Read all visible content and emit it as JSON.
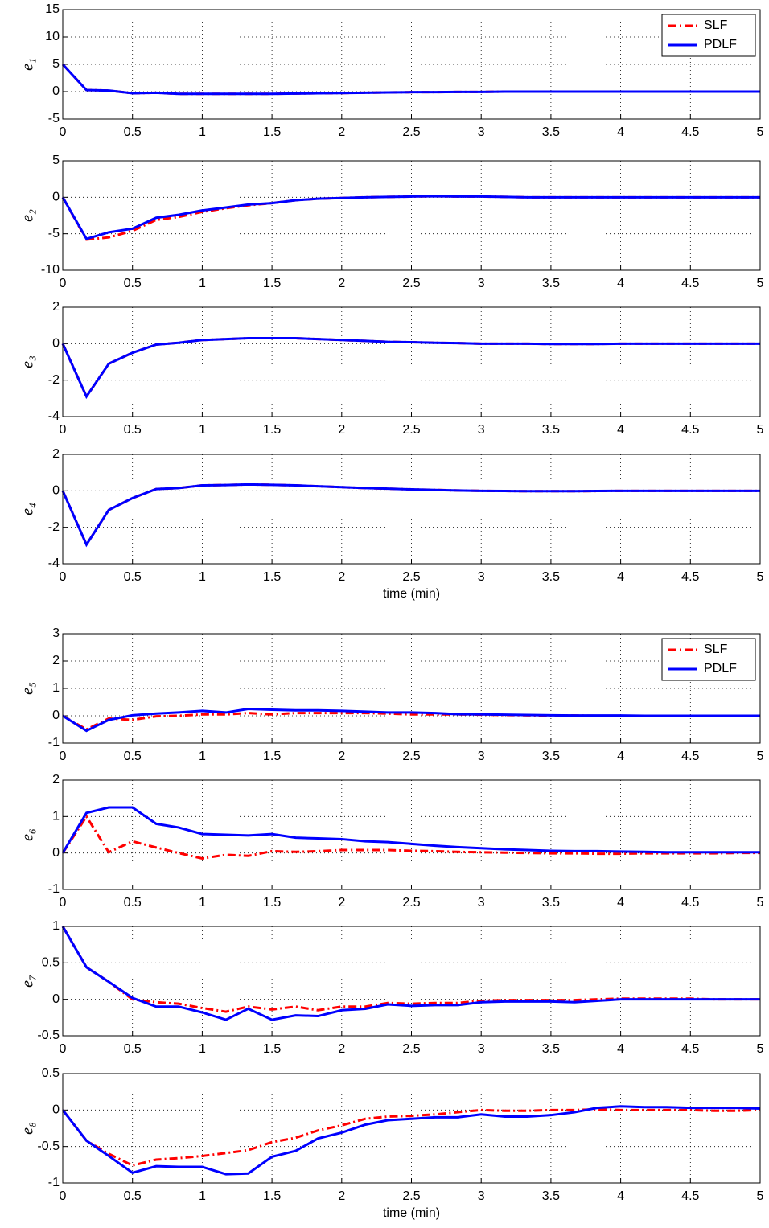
{
  "chart_data": [
    {
      "type": "line",
      "ylabel": "e₁",
      "legend": "upper right",
      "grid": true,
      "xlim": [
        0,
        5
      ],
      "xticks": [
        0,
        0.5,
        1,
        1.5,
        2,
        2.5,
        3,
        3.5,
        4,
        4.5,
        5
      ],
      "ylim": [
        -5,
        15
      ],
      "yticks": [
        -5,
        0,
        5,
        10,
        15
      ],
      "x": [
        0,
        0.17,
        0.33,
        0.5,
        0.67,
        0.83,
        1,
        1.17,
        1.33,
        1.5,
        1.67,
        1.83,
        2,
        2.17,
        2.33,
        2.5,
        2.67,
        2.83,
        3,
        3.17,
        3.33,
        3.5,
        3.67,
        3.83,
        4,
        4.17,
        4.33,
        4.5,
        4.67,
        4.83,
        5
      ],
      "series": [
        {
          "name": "SLF",
          "color": "#ff0000",
          "linestyle": "dash-dot",
          "values": [
            5,
            0.3,
            0.2,
            -0.3,
            -0.2,
            -0.4,
            -0.4,
            -0.4,
            -0.4,
            -0.4,
            -0.35,
            -0.3,
            -0.25,
            -0.2,
            -0.15,
            -0.1,
            -0.1,
            -0.05,
            -0.05,
            0,
            0,
            0,
            0,
            0,
            0,
            0,
            0,
            0,
            0,
            0,
            0
          ]
        },
        {
          "name": "PDLF",
          "color": "#0000ff",
          "linestyle": "solid",
          "values": [
            5,
            0.3,
            0.2,
            -0.3,
            -0.2,
            -0.4,
            -0.4,
            -0.4,
            -0.4,
            -0.4,
            -0.35,
            -0.3,
            -0.25,
            -0.2,
            -0.15,
            -0.1,
            -0.1,
            -0.05,
            -0.05,
            0,
            0,
            0,
            0,
            0,
            0,
            0,
            0,
            0,
            0,
            0,
            0
          ]
        }
      ]
    },
    {
      "type": "line",
      "ylabel": "e₂",
      "grid": true,
      "xlim": [
        0,
        5
      ],
      "xticks": [
        0,
        0.5,
        1,
        1.5,
        2,
        2.5,
        3,
        3.5,
        4,
        4.5,
        5
      ],
      "ylim": [
        -10,
        5
      ],
      "yticks": [
        -10,
        -5,
        0,
        5
      ],
      "x": [
        0,
        0.17,
        0.33,
        0.5,
        0.67,
        0.83,
        1,
        1.17,
        1.33,
        1.5,
        1.67,
        1.83,
        2,
        2.17,
        2.33,
        2.5,
        2.67,
        2.83,
        3,
        3.17,
        3.33,
        3.5,
        3.67,
        3.83,
        4,
        4.17,
        4.33,
        4.5,
        4.67,
        4.83,
        5
      ],
      "series": [
        {
          "name": "SLF",
          "color": "#ff0000",
          "linestyle": "dash-dot",
          "values": [
            0,
            -5.8,
            -5.5,
            -4.6,
            -3.1,
            -2.7,
            -2.0,
            -1.5,
            -1.1,
            -0.8,
            -0.4,
            -0.2,
            -0.1,
            0,
            0.05,
            0.1,
            0.15,
            0.1,
            0.1,
            0.05,
            0,
            0,
            0,
            0,
            0,
            0,
            0,
            0,
            0,
            0,
            0
          ]
        },
        {
          "name": "PDLF",
          "color": "#0000ff",
          "linestyle": "solid",
          "values": [
            0,
            -5.7,
            -4.8,
            -4.3,
            -2.8,
            -2.4,
            -1.8,
            -1.4,
            -1.0,
            -0.8,
            -0.4,
            -0.2,
            -0.1,
            0,
            0.05,
            0.1,
            0.15,
            0.1,
            0.1,
            0.05,
            0,
            0,
            0,
            0,
            0,
            0,
            0,
            0,
            0,
            0,
            0
          ]
        }
      ]
    },
    {
      "type": "line",
      "ylabel": "e₃",
      "grid": true,
      "xlim": [
        0,
        5
      ],
      "xticks": [
        0,
        0.5,
        1,
        1.5,
        2,
        2.5,
        3,
        3.5,
        4,
        4.5,
        5
      ],
      "ylim": [
        -4,
        2
      ],
      "yticks": [
        -4,
        -2,
        0,
        2
      ],
      "x": [
        0,
        0.17,
        0.33,
        0.5,
        0.67,
        0.83,
        1,
        1.17,
        1.33,
        1.5,
        1.67,
        1.83,
        2,
        2.17,
        2.33,
        2.5,
        2.67,
        2.83,
        3,
        3.17,
        3.33,
        3.5,
        3.67,
        3.83,
        4,
        4.17,
        4.33,
        4.5,
        4.67,
        4.83,
        5
      ],
      "series": [
        {
          "name": "SLF",
          "color": "#ff0000",
          "linestyle": "dash-dot",
          "values": [
            0,
            -2.9,
            -1.1,
            -0.5,
            -0.05,
            0.05,
            0.2,
            0.25,
            0.3,
            0.3,
            0.3,
            0.25,
            0.2,
            0.15,
            0.1,
            0.08,
            0.05,
            0.03,
            0,
            0,
            0,
            -0.02,
            -0.02,
            -0.02,
            0,
            0,
            0,
            0,
            0,
            0,
            0
          ]
        },
        {
          "name": "PDLF",
          "color": "#0000ff",
          "linestyle": "solid",
          "values": [
            0,
            -2.9,
            -1.1,
            -0.5,
            -0.05,
            0.05,
            0.2,
            0.25,
            0.3,
            0.3,
            0.3,
            0.25,
            0.2,
            0.15,
            0.1,
            0.08,
            0.05,
            0.03,
            0,
            0,
            0,
            -0.02,
            -0.02,
            -0.02,
            0,
            0,
            0,
            0,
            0,
            0,
            0
          ]
        }
      ]
    },
    {
      "type": "line",
      "ylabel": "e₄",
      "xlabel": "time (min)",
      "grid": true,
      "xlim": [
        0,
        5
      ],
      "xticks": [
        0,
        0.5,
        1,
        1.5,
        2,
        2.5,
        3,
        3.5,
        4,
        4.5,
        5
      ],
      "ylim": [
        -4,
        2
      ],
      "yticks": [
        -4,
        -2,
        0,
        2
      ],
      "x": [
        0,
        0.17,
        0.33,
        0.5,
        0.67,
        0.83,
        1,
        1.17,
        1.33,
        1.5,
        1.67,
        1.83,
        2,
        2.17,
        2.33,
        2.5,
        2.67,
        2.83,
        3,
        3.17,
        3.33,
        3.5,
        3.67,
        3.83,
        4,
        4.17,
        4.33,
        4.5,
        4.67,
        4.83,
        5
      ],
      "series": [
        {
          "name": "SLF",
          "color": "#ff0000",
          "linestyle": "dash-dot",
          "values": [
            0,
            -2.95,
            -1.05,
            -0.4,
            0.1,
            0.15,
            0.3,
            0.32,
            0.35,
            0.33,
            0.3,
            0.25,
            0.2,
            0.15,
            0.12,
            0.08,
            0.05,
            0.02,
            0,
            -0.01,
            -0.02,
            -0.02,
            -0.02,
            -0.01,
            0,
            0,
            0,
            0,
            0,
            0,
            0
          ]
        },
        {
          "name": "PDLF",
          "color": "#0000ff",
          "linestyle": "solid",
          "values": [
            0,
            -2.95,
            -1.05,
            -0.4,
            0.1,
            0.15,
            0.3,
            0.32,
            0.35,
            0.33,
            0.3,
            0.25,
            0.2,
            0.15,
            0.12,
            0.08,
            0.05,
            0.02,
            0,
            -0.01,
            -0.02,
            -0.02,
            -0.02,
            -0.01,
            0,
            0,
            0,
            0,
            0,
            0,
            0
          ]
        }
      ]
    },
    {
      "type": "line",
      "ylabel": "e₅",
      "legend": "upper right",
      "grid": true,
      "xlim": [
        0,
        5
      ],
      "xticks": [
        0,
        0.5,
        1,
        1.5,
        2,
        2.5,
        3,
        3.5,
        4,
        4.5,
        5
      ],
      "ylim": [
        -1,
        3
      ],
      "yticks": [
        -1,
        0,
        1,
        2,
        3
      ],
      "x": [
        0,
        0.17,
        0.33,
        0.5,
        0.67,
        0.83,
        1,
        1.17,
        1.33,
        1.5,
        1.67,
        1.83,
        2,
        2.17,
        2.33,
        2.5,
        2.67,
        2.83,
        3,
        3.17,
        3.33,
        3.5,
        3.67,
        3.83,
        4,
        4.17,
        4.33,
        4.5,
        4.67,
        4.83,
        5
      ],
      "series": [
        {
          "name": "SLF",
          "color": "#ff0000",
          "linestyle": "dash-dot",
          "values": [
            0,
            -0.5,
            -0.1,
            -0.15,
            -0.02,
            0,
            0.05,
            0.05,
            0.1,
            0.05,
            0.1,
            0.1,
            0.1,
            0.1,
            0.08,
            0.05,
            0.05,
            0.05,
            0.04,
            0.03,
            0.02,
            0.01,
            0.01,
            0,
            0,
            0,
            0,
            0,
            0,
            0,
            0
          ]
        },
        {
          "name": "PDLF",
          "color": "#0000ff",
          "linestyle": "solid",
          "values": [
            0,
            -0.55,
            -0.15,
            0.02,
            0.08,
            0.12,
            0.18,
            0.12,
            0.25,
            0.22,
            0.2,
            0.2,
            0.18,
            0.15,
            0.12,
            0.12,
            0.1,
            0.06,
            0.05,
            0.04,
            0.03,
            0.02,
            0.01,
            0.01,
            0.01,
            0,
            0,
            0,
            0,
            0,
            0
          ]
        }
      ]
    },
    {
      "type": "line",
      "ylabel": "e₆",
      "grid": true,
      "xlim": [
        0,
        5
      ],
      "xticks": [
        0,
        0.5,
        1,
        1.5,
        2,
        2.5,
        3,
        3.5,
        4,
        4.5,
        5
      ],
      "ylim": [
        -1,
        2
      ],
      "yticks": [
        -1,
        0,
        1,
        2
      ],
      "x": [
        0,
        0.17,
        0.33,
        0.5,
        0.67,
        0.83,
        1,
        1.17,
        1.33,
        1.5,
        1.67,
        1.83,
        2,
        2.17,
        2.33,
        2.5,
        2.67,
        2.83,
        3,
        3.17,
        3.33,
        3.5,
        3.67,
        3.83,
        4,
        4.17,
        4.33,
        4.5,
        4.67,
        4.83,
        5
      ],
      "series": [
        {
          "name": "SLF",
          "color": "#ff0000",
          "linestyle": "dash-dot",
          "values": [
            0,
            1.0,
            0.02,
            0.32,
            0.15,
            0,
            -0.15,
            -0.05,
            -0.08,
            0.05,
            0.03,
            0.05,
            0.08,
            0.08,
            0.08,
            0.06,
            0.05,
            0.03,
            0.02,
            0.01,
            0,
            -0.01,
            -0.01,
            -0.02,
            -0.02,
            -0.01,
            -0.01,
            -0.01,
            -0.01,
            0,
            0
          ]
        },
        {
          "name": "PDLF",
          "color": "#0000ff",
          "linestyle": "solid",
          "values": [
            0,
            1.1,
            1.25,
            1.25,
            0.8,
            0.7,
            0.52,
            0.5,
            0.48,
            0.52,
            0.42,
            0.4,
            0.38,
            0.32,
            0.3,
            0.25,
            0.2,
            0.16,
            0.13,
            0.1,
            0.08,
            0.06,
            0.05,
            0.05,
            0.04,
            0.03,
            0.02,
            0.02,
            0.02,
            0.02,
            0.02
          ]
        }
      ]
    },
    {
      "type": "line",
      "ylabel": "e₇",
      "grid": true,
      "xlim": [
        0,
        5
      ],
      "xticks": [
        0,
        0.5,
        1,
        1.5,
        2,
        2.5,
        3,
        3.5,
        4,
        4.5,
        5
      ],
      "ylim": [
        -0.5,
        1
      ],
      "yticks": [
        -0.5,
        0,
        0.5,
        1
      ],
      "x": [
        0,
        0.17,
        0.33,
        0.5,
        0.67,
        0.83,
        1,
        1.17,
        1.33,
        1.5,
        1.67,
        1.83,
        2,
        2.17,
        2.33,
        2.5,
        2.67,
        2.83,
        3,
        3.17,
        3.33,
        3.5,
        3.67,
        3.83,
        4,
        4.17,
        4.33,
        4.5,
        4.67,
        4.83,
        5
      ],
      "series": [
        {
          "name": "SLF",
          "color": "#ff0000",
          "linestyle": "dash-dot",
          "values": [
            1,
            0.44,
            0.24,
            0,
            -0.04,
            -0.06,
            -0.12,
            -0.17,
            -0.1,
            -0.14,
            -0.1,
            -0.15,
            -0.1,
            -0.1,
            -0.05,
            -0.06,
            -0.05,
            -0.05,
            -0.02,
            -0.01,
            -0.01,
            -0.01,
            -0.01,
            0,
            0.01,
            0.01,
            0.01,
            0.01,
            0,
            0,
            0
          ]
        },
        {
          "name": "PDLF",
          "color": "#0000ff",
          "linestyle": "solid",
          "values": [
            1,
            0.44,
            0.24,
            0.02,
            -0.1,
            -0.1,
            -0.18,
            -0.28,
            -0.13,
            -0.28,
            -0.22,
            -0.23,
            -0.15,
            -0.13,
            -0.07,
            -0.09,
            -0.08,
            -0.08,
            -0.04,
            -0.03,
            -0.03,
            -0.03,
            -0.04,
            -0.02,
            0,
            0,
            0,
            0,
            0,
            0,
            0
          ]
        }
      ]
    },
    {
      "type": "line",
      "ylabel": "e₈",
      "xlabel": "time (min)",
      "grid": true,
      "xlim": [
        0,
        5
      ],
      "xticks": [
        0,
        0.5,
        1,
        1.5,
        2,
        2.5,
        3,
        3.5,
        4,
        4.5,
        5
      ],
      "ylim": [
        -1,
        0.5
      ],
      "yticks": [
        -1,
        -0.5,
        0,
        0.5
      ],
      "x": [
        0,
        0.17,
        0.33,
        0.5,
        0.67,
        0.83,
        1,
        1.17,
        1.33,
        1.5,
        1.67,
        1.83,
        2,
        2.17,
        2.33,
        2.5,
        2.67,
        2.83,
        3,
        3.17,
        3.33,
        3.5,
        3.67,
        3.83,
        4,
        4.17,
        4.33,
        4.5,
        4.67,
        4.83,
        5
      ],
      "series": [
        {
          "name": "SLF",
          "color": "#ff0000",
          "linestyle": "dash-dot",
          "values": [
            0,
            -0.42,
            -0.6,
            -0.76,
            -0.68,
            -0.66,
            -0.63,
            -0.59,
            -0.55,
            -0.44,
            -0.38,
            -0.28,
            -0.21,
            -0.12,
            -0.09,
            -0.08,
            -0.06,
            -0.03,
            0,
            -0.01,
            -0.01,
            0,
            0,
            0.01,
            0,
            0,
            0,
            0,
            -0.01,
            -0.01,
            0
          ]
        },
        {
          "name": "PDLF",
          "color": "#0000ff",
          "linestyle": "solid",
          "values": [
            0,
            -0.42,
            -0.63,
            -0.86,
            -0.77,
            -0.78,
            -0.78,
            -0.88,
            -0.87,
            -0.64,
            -0.56,
            -0.39,
            -0.31,
            -0.2,
            -0.14,
            -0.12,
            -0.1,
            -0.1,
            -0.06,
            -0.09,
            -0.09,
            -0.07,
            -0.03,
            0.03,
            0.05,
            0.04,
            0.04,
            0.03,
            0.03,
            0.03,
            0.02
          ]
        }
      ]
    }
  ]
}
